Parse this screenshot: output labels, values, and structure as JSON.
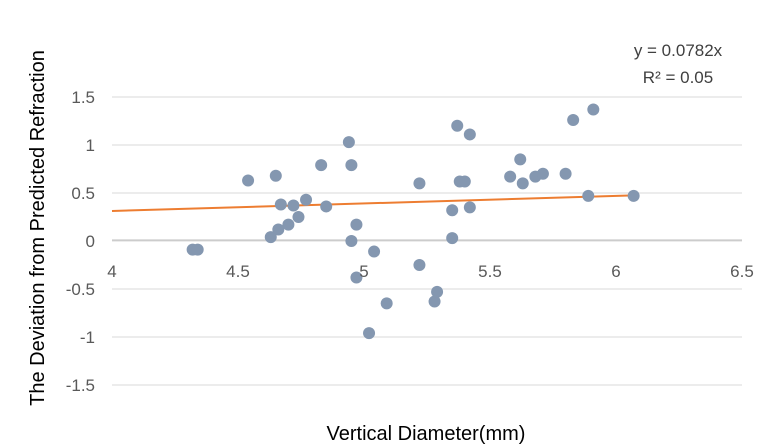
{
  "chart_data": {
    "type": "scatter",
    "xlabel": "Vertical Diameter(mm)",
    "ylabel": "The Deviation from Predicted Refraction",
    "xlim": [
      4,
      6.5
    ],
    "ylim": [
      -1.5,
      1.5
    ],
    "x_ticks": [
      "4",
      "4.5",
      "5",
      "5.5",
      "6",
      "6.5"
    ],
    "y_ticks": [
      "1.5",
      "1",
      "0.5",
      "0",
      "-0.5",
      "-1",
      "-1.5"
    ],
    "grid": "horizontal",
    "legend": "none",
    "trendline": {
      "type": "linear",
      "equation": "y = 0.0782x",
      "r_squared": "R² = 0.05",
      "slope": 0.0782,
      "x_range": [
        4,
        6.07
      ],
      "color": "#ED7D31"
    },
    "point_color": "#8497B0",
    "points": [
      {
        "x": 4.32,
        "y": -0.09
      },
      {
        "x": 4.34,
        "y": -0.09
      },
      {
        "x": 4.54,
        "y": 0.63
      },
      {
        "x": 4.63,
        "y": 0.04
      },
      {
        "x": 4.65,
        "y": 0.68
      },
      {
        "x": 4.66,
        "y": 0.12
      },
      {
        "x": 4.67,
        "y": 0.38
      },
      {
        "x": 4.7,
        "y": 0.17
      },
      {
        "x": 4.72,
        "y": 0.37
      },
      {
        "x": 4.74,
        "y": 0.25
      },
      {
        "x": 4.77,
        "y": 0.43
      },
      {
        "x": 4.83,
        "y": 0.79
      },
      {
        "x": 4.85,
        "y": 0.36
      },
      {
        "x": 4.94,
        "y": 1.03
      },
      {
        "x": 4.95,
        "y": 0.79
      },
      {
        "x": 4.95,
        "y": 0.0
      },
      {
        "x": 4.97,
        "y": 0.17
      },
      {
        "x": 4.97,
        "y": -0.38
      },
      {
        "x": 5.02,
        "y": -0.96
      },
      {
        "x": 5.04,
        "y": -0.11
      },
      {
        "x": 5.09,
        "y": -0.65
      },
      {
        "x": 5.22,
        "y": 0.6
      },
      {
        "x": 5.22,
        "y": -0.25
      },
      {
        "x": 5.28,
        "y": -0.63
      },
      {
        "x": 5.29,
        "y": -0.53
      },
      {
        "x": 5.35,
        "y": 0.32
      },
      {
        "x": 5.35,
        "y": 0.03
      },
      {
        "x": 5.37,
        "y": 1.2
      },
      {
        "x": 5.38,
        "y": 0.62
      },
      {
        "x": 5.4,
        "y": 0.62
      },
      {
        "x": 5.42,
        "y": 1.11
      },
      {
        "x": 5.42,
        "y": 0.35
      },
      {
        "x": 5.58,
        "y": 0.67
      },
      {
        "x": 5.62,
        "y": 0.85
      },
      {
        "x": 5.63,
        "y": 0.6
      },
      {
        "x": 5.68,
        "y": 0.67
      },
      {
        "x": 5.71,
        "y": 0.7
      },
      {
        "x": 5.8,
        "y": 0.7
      },
      {
        "x": 5.83,
        "y": 1.26
      },
      {
        "x": 5.89,
        "y": 0.47
      },
      {
        "x": 5.91,
        "y": 1.37
      },
      {
        "x": 6.07,
        "y": 0.47
      }
    ]
  }
}
